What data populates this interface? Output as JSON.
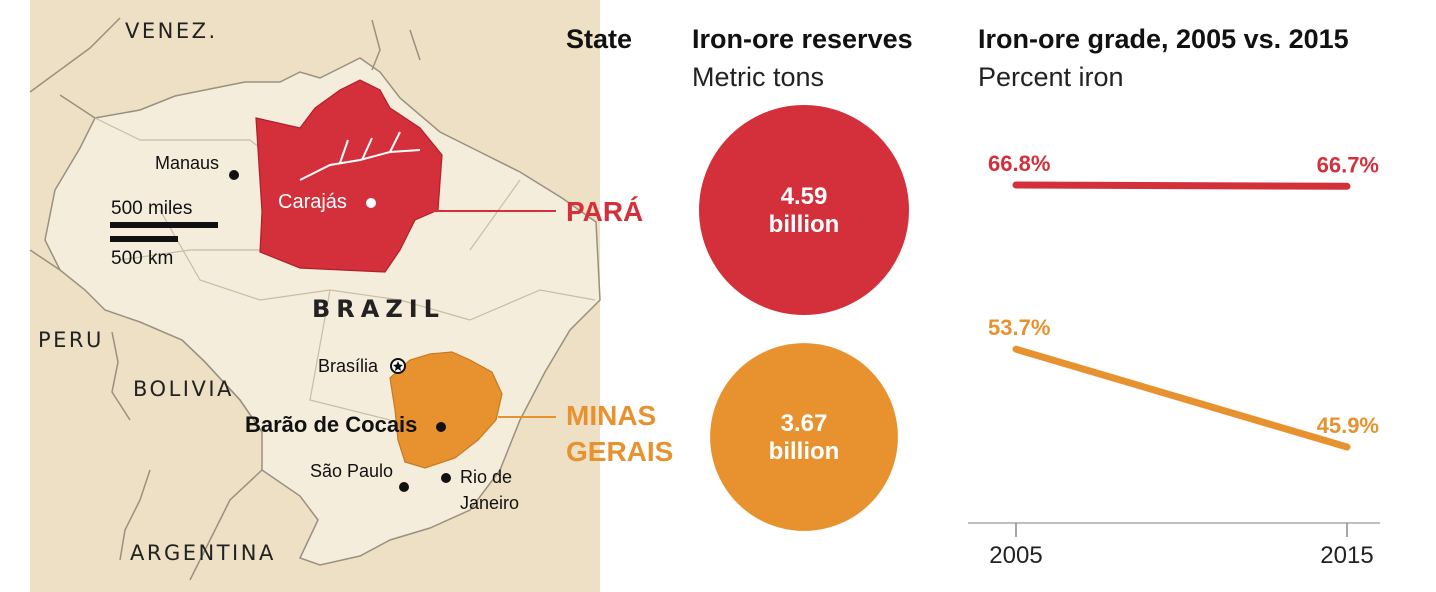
{
  "headers": {
    "state": "State",
    "reserves_title": "Iron-ore reserves",
    "reserves_unit": "Metric tons",
    "grade_title": "Iron-ore grade, 2005 vs. 2015",
    "grade_unit": "Percent iron"
  },
  "map": {
    "countries": {
      "venez": "VENEZ.",
      "brazil": "BRAZIL",
      "peru": "PERU",
      "bolivia": "BOLIVIA",
      "argentina": "ARGENTINA"
    },
    "cities": {
      "manaus": "Manaus",
      "carajas": "Carajás",
      "brasilia": "Brasília",
      "barao": "Barão de Cocais",
      "sao_paulo": "São Paulo",
      "rio_1": "Rio de",
      "rio_2": "Janeiro"
    },
    "scale": {
      "miles": "500 miles",
      "km": "500 km"
    },
    "colors": {
      "land": "#ede0c4",
      "brazil": "#f5eddb",
      "border": "#9a9080",
      "para": "#d3303b",
      "minas": "#e8922f"
    }
  },
  "states": {
    "para": {
      "label": "PARÁ",
      "color": "#d3303b"
    },
    "minas_line1": "MINAS",
    "minas_line2": "GERAIS",
    "minas_color": "#e8922f"
  },
  "chart_data": [
    {
      "type": "bubble",
      "title": "Iron-ore reserves",
      "subtitle": "Metric tons",
      "categories": [
        "PARÁ",
        "MINAS GERAIS"
      ],
      "values": [
        4.59,
        3.67
      ],
      "unit": "billion",
      "labels": [
        {
          "value": "4.59",
          "unit": "billion"
        },
        {
          "value": "3.67",
          "unit": "billion"
        }
      ]
    },
    {
      "type": "line",
      "title": "Iron-ore grade, 2005 vs. 2015",
      "subtitle": "Percent iron",
      "x": [
        2005,
        2015
      ],
      "x_tick_labels": [
        "2005",
        "2015"
      ],
      "ylim": [
        40,
        70
      ],
      "series": [
        {
          "color": "#d3303b",
          "values": [
            66.8,
            66.7
          ],
          "labels": [
            "66.8%",
            "66.7%"
          ]
        },
        {
          "color": "#e8922f",
          "values": [
            53.7,
            45.9
          ],
          "labels": [
            "53.7%",
            "45.9%"
          ]
        }
      ]
    }
  ]
}
